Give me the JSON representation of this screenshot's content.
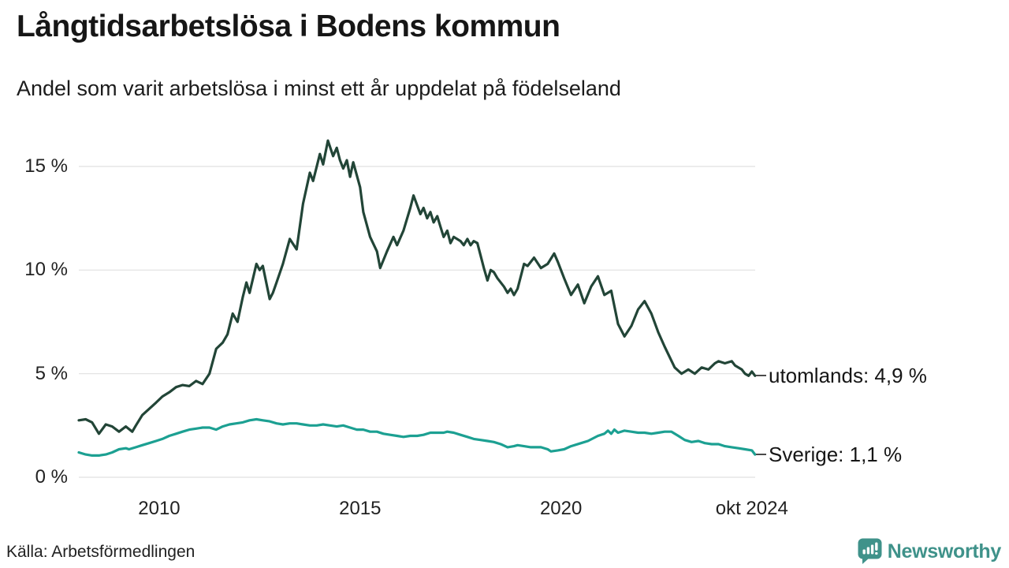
{
  "header": {
    "title": "Långtidsarbetslösa i Bodens kommun",
    "subtitle": "Andel som varit arbetslösa i minst ett år uppdelat på födelseland"
  },
  "footer": {
    "source": "Källa: Arbetsförmedlingen",
    "brand": "Newsworthy"
  },
  "colors": {
    "utomlands_line": "#224537",
    "sverige_line": "#1ca092",
    "brand_teal": "#3f928a",
    "gridline": "#e1e1e1",
    "text": "#161616"
  },
  "chart_data": {
    "type": "line",
    "title": "Långtidsarbetslösa i Bodens kommun",
    "subtitle": "Andel som varit arbetslösa i minst ett år uppdelat på födelseland",
    "grid": "horizontal",
    "legend_position": "right-end-labels",
    "x_range": [
      2008.0,
      2024.833
    ],
    "ylim": [
      0,
      15
    ],
    "y_ticks": [
      {
        "v": 0,
        "label": "0 %"
      },
      {
        "v": 5,
        "label": "5 %"
      },
      {
        "v": 10,
        "label": "10 %"
      },
      {
        "v": 15,
        "label": "15 %"
      }
    ],
    "x_ticks": [
      {
        "v": 2010,
        "label": "2010"
      },
      {
        "v": 2015,
        "label": "2015"
      },
      {
        "v": 2020,
        "label": "2020"
      },
      {
        "v": 2024.75,
        "label": "okt 2024"
      }
    ],
    "series": [
      {
        "name": "utomlands",
        "color": "#224537",
        "end_label": "utomlands: 4,9 %",
        "end_value_text": "4,9 %",
        "points": [
          [
            2008.0,
            2.75
          ],
          [
            2008.17,
            2.8
          ],
          [
            2008.33,
            2.65
          ],
          [
            2008.5,
            2.1
          ],
          [
            2008.67,
            2.55
          ],
          [
            2008.83,
            2.45
          ],
          [
            2009.0,
            2.2
          ],
          [
            2009.17,
            2.45
          ],
          [
            2009.33,
            2.2
          ],
          [
            2009.42,
            2.5
          ],
          [
            2009.58,
            3.0
          ],
          [
            2009.75,
            3.3
          ],
          [
            2009.92,
            3.6
          ],
          [
            2010.08,
            3.9
          ],
          [
            2010.25,
            4.1
          ],
          [
            2010.42,
            4.35
          ],
          [
            2010.58,
            4.45
          ],
          [
            2010.75,
            4.4
          ],
          [
            2010.92,
            4.65
          ],
          [
            2011.08,
            4.5
          ],
          [
            2011.25,
            5.0
          ],
          [
            2011.42,
            6.2
          ],
          [
            2011.58,
            6.5
          ],
          [
            2011.7,
            6.9
          ],
          [
            2011.83,
            7.9
          ],
          [
            2011.95,
            7.5
          ],
          [
            2012.08,
            8.7
          ],
          [
            2012.17,
            9.4
          ],
          [
            2012.25,
            8.9
          ],
          [
            2012.42,
            10.3
          ],
          [
            2012.5,
            10.0
          ],
          [
            2012.58,
            10.2
          ],
          [
            2012.75,
            8.6
          ],
          [
            2012.83,
            8.9
          ],
          [
            2012.92,
            9.4
          ],
          [
            2013.08,
            10.3
          ],
          [
            2013.25,
            11.5
          ],
          [
            2013.42,
            11.0
          ],
          [
            2013.58,
            13.2
          ],
          [
            2013.75,
            14.7
          ],
          [
            2013.83,
            14.3
          ],
          [
            2014.0,
            15.6
          ],
          [
            2014.08,
            15.1
          ],
          [
            2014.2,
            16.25
          ],
          [
            2014.33,
            15.5
          ],
          [
            2014.42,
            15.9
          ],
          [
            2014.5,
            15.3
          ],
          [
            2014.58,
            14.9
          ],
          [
            2014.67,
            15.3
          ],
          [
            2014.75,
            14.5
          ],
          [
            2014.83,
            15.2
          ],
          [
            2015.0,
            14.0
          ],
          [
            2015.08,
            12.8
          ],
          [
            2015.25,
            11.6
          ],
          [
            2015.42,
            10.9
          ],
          [
            2015.5,
            10.1
          ],
          [
            2015.67,
            10.9
          ],
          [
            2015.83,
            11.6
          ],
          [
            2015.92,
            11.2
          ],
          [
            2016.08,
            11.9
          ],
          [
            2016.25,
            13.0
          ],
          [
            2016.33,
            13.6
          ],
          [
            2016.5,
            12.7
          ],
          [
            2016.58,
            13.0
          ],
          [
            2016.67,
            12.5
          ],
          [
            2016.75,
            12.8
          ],
          [
            2016.83,
            12.3
          ],
          [
            2016.92,
            12.6
          ],
          [
            2017.0,
            12.1
          ],
          [
            2017.08,
            11.6
          ],
          [
            2017.17,
            11.9
          ],
          [
            2017.25,
            11.3
          ],
          [
            2017.33,
            11.6
          ],
          [
            2017.5,
            11.4
          ],
          [
            2017.58,
            11.2
          ],
          [
            2017.67,
            11.5
          ],
          [
            2017.75,
            11.2
          ],
          [
            2017.83,
            11.4
          ],
          [
            2017.92,
            11.3
          ],
          [
            2018.08,
            10.1
          ],
          [
            2018.17,
            9.5
          ],
          [
            2018.25,
            10.0
          ],
          [
            2018.33,
            9.9
          ],
          [
            2018.42,
            9.6
          ],
          [
            2018.58,
            9.2
          ],
          [
            2018.67,
            8.9
          ],
          [
            2018.75,
            9.1
          ],
          [
            2018.83,
            8.8
          ],
          [
            2018.92,
            9.1
          ],
          [
            2019.08,
            10.3
          ],
          [
            2019.17,
            10.2
          ],
          [
            2019.33,
            10.6
          ],
          [
            2019.5,
            10.1
          ],
          [
            2019.67,
            10.3
          ],
          [
            2019.83,
            10.8
          ],
          [
            2019.92,
            10.4
          ],
          [
            2020.08,
            9.6
          ],
          [
            2020.25,
            8.8
          ],
          [
            2020.42,
            9.3
          ],
          [
            2020.58,
            8.4
          ],
          [
            2020.75,
            9.2
          ],
          [
            2020.92,
            9.7
          ],
          [
            2021.08,
            8.8
          ],
          [
            2021.25,
            9.0
          ],
          [
            2021.42,
            7.4
          ],
          [
            2021.58,
            6.8
          ],
          [
            2021.75,
            7.3
          ],
          [
            2021.92,
            8.1
          ],
          [
            2022.08,
            8.5
          ],
          [
            2022.25,
            7.9
          ],
          [
            2022.42,
            7.0
          ],
          [
            2022.58,
            6.3
          ],
          [
            2022.83,
            5.3
          ],
          [
            2023.0,
            5.0
          ],
          [
            2023.17,
            5.2
          ],
          [
            2023.33,
            5.0
          ],
          [
            2023.5,
            5.3
          ],
          [
            2023.67,
            5.2
          ],
          [
            2023.83,
            5.5
          ],
          [
            2023.92,
            5.6
          ],
          [
            2024.08,
            5.5
          ],
          [
            2024.25,
            5.6
          ],
          [
            2024.33,
            5.4
          ],
          [
            2024.5,
            5.2
          ],
          [
            2024.58,
            5.0
          ],
          [
            2024.67,
            4.9
          ],
          [
            2024.75,
            5.1
          ],
          [
            2024.83,
            4.9
          ]
        ]
      },
      {
        "name": "Sverige",
        "color": "#1ca092",
        "end_label": "Sverige: 1,1 %",
        "end_value_text": "1,1 %",
        "points": [
          [
            2008.0,
            1.2
          ],
          [
            2008.17,
            1.1
          ],
          [
            2008.33,
            1.05
          ],
          [
            2008.5,
            1.05
          ],
          [
            2008.67,
            1.1
          ],
          [
            2008.83,
            1.2
          ],
          [
            2009.0,
            1.35
          ],
          [
            2009.17,
            1.4
          ],
          [
            2009.25,
            1.35
          ],
          [
            2009.42,
            1.45
          ],
          [
            2009.58,
            1.55
          ],
          [
            2009.75,
            1.65
          ],
          [
            2009.92,
            1.75
          ],
          [
            2010.08,
            1.85
          ],
          [
            2010.25,
            2.0
          ],
          [
            2010.42,
            2.1
          ],
          [
            2010.58,
            2.2
          ],
          [
            2010.75,
            2.3
          ],
          [
            2010.92,
            2.35
          ],
          [
            2011.08,
            2.4
          ],
          [
            2011.25,
            2.4
          ],
          [
            2011.42,
            2.3
          ],
          [
            2011.58,
            2.45
          ],
          [
            2011.75,
            2.55
          ],
          [
            2011.92,
            2.6
          ],
          [
            2012.08,
            2.65
          ],
          [
            2012.25,
            2.75
          ],
          [
            2012.42,
            2.8
          ],
          [
            2012.58,
            2.75
          ],
          [
            2012.75,
            2.7
          ],
          [
            2012.92,
            2.6
          ],
          [
            2013.08,
            2.55
          ],
          [
            2013.25,
            2.6
          ],
          [
            2013.42,
            2.6
          ],
          [
            2013.58,
            2.55
          ],
          [
            2013.75,
            2.5
          ],
          [
            2013.92,
            2.5
          ],
          [
            2014.08,
            2.55
          ],
          [
            2014.25,
            2.5
          ],
          [
            2014.42,
            2.45
          ],
          [
            2014.58,
            2.5
          ],
          [
            2014.75,
            2.4
          ],
          [
            2014.92,
            2.3
          ],
          [
            2015.08,
            2.3
          ],
          [
            2015.25,
            2.2
          ],
          [
            2015.42,
            2.2
          ],
          [
            2015.58,
            2.1
          ],
          [
            2015.75,
            2.05
          ],
          [
            2015.92,
            2.0
          ],
          [
            2016.08,
            1.95
          ],
          [
            2016.25,
            2.0
          ],
          [
            2016.42,
            2.0
          ],
          [
            2016.58,
            2.05
          ],
          [
            2016.75,
            2.15
          ],
          [
            2016.92,
            2.15
          ],
          [
            2017.08,
            2.15
          ],
          [
            2017.17,
            2.2
          ],
          [
            2017.33,
            2.15
          ],
          [
            2017.5,
            2.05
          ],
          [
            2017.67,
            1.95
          ],
          [
            2017.83,
            1.85
          ],
          [
            2018.0,
            1.8
          ],
          [
            2018.17,
            1.75
          ],
          [
            2018.33,
            1.7
          ],
          [
            2018.5,
            1.6
          ],
          [
            2018.67,
            1.45
          ],
          [
            2018.83,
            1.5
          ],
          [
            2018.92,
            1.55
          ],
          [
            2019.08,
            1.5
          ],
          [
            2019.25,
            1.45
          ],
          [
            2019.5,
            1.45
          ],
          [
            2019.67,
            1.35
          ],
          [
            2019.75,
            1.25
          ],
          [
            2019.92,
            1.3
          ],
          [
            2020.08,
            1.35
          ],
          [
            2020.25,
            1.5
          ],
          [
            2020.5,
            1.65
          ],
          [
            2020.67,
            1.75
          ],
          [
            2020.92,
            2.0
          ],
          [
            2021.08,
            2.1
          ],
          [
            2021.17,
            2.25
          ],
          [
            2021.25,
            2.1
          ],
          [
            2021.33,
            2.3
          ],
          [
            2021.42,
            2.15
          ],
          [
            2021.58,
            2.25
          ],
          [
            2021.75,
            2.2
          ],
          [
            2021.92,
            2.15
          ],
          [
            2022.08,
            2.15
          ],
          [
            2022.25,
            2.1
          ],
          [
            2022.42,
            2.15
          ],
          [
            2022.58,
            2.2
          ],
          [
            2022.75,
            2.2
          ],
          [
            2022.92,
            2.0
          ],
          [
            2023.08,
            1.8
          ],
          [
            2023.25,
            1.7
          ],
          [
            2023.42,
            1.75
          ],
          [
            2023.58,
            1.65
          ],
          [
            2023.75,
            1.6
          ],
          [
            2023.92,
            1.6
          ],
          [
            2024.08,
            1.5
          ],
          [
            2024.25,
            1.45
          ],
          [
            2024.42,
            1.4
          ],
          [
            2024.58,
            1.35
          ],
          [
            2024.75,
            1.3
          ],
          [
            2024.83,
            1.1
          ]
        ]
      }
    ],
    "source": "Källa: Arbetsförmedlingen"
  }
}
